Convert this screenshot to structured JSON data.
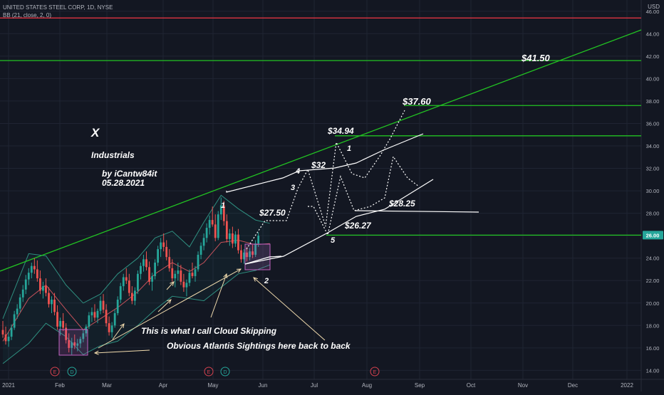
{
  "header": {
    "symbol_line": "UNITED STATES STEEL CORP, 1D, NYSE",
    "indicator_line": "BB (21, close, 2, 0)",
    "currency": "USD"
  },
  "colors": {
    "background": "#131722",
    "grid": "#1f2433",
    "text": "#b2b5be",
    "up": "#26a69a",
    "down": "#ef5350",
    "bb_band": "#2f8f80",
    "bb_basis": "#c4515a",
    "bb_fill": "rgba(38,166,154,0.06)",
    "resistance_red": "#f23645",
    "support_green": "#22c322",
    "annotation": "#ffffff",
    "arrow": "#f2dcae",
    "box": "#c060c0",
    "last_price_bg": "#26a69a"
  },
  "chart_data": {
    "type": "candlestick",
    "symbol": "UNITED STATES STEEL CORP",
    "interval": "1D",
    "exchange": "NYSE",
    "indicator": "BB (21, close, 2, 0)",
    "ylim": [
      13.2,
      47.0
    ],
    "y_ticks": [
      "46.00",
      "44.00",
      "42.00",
      "40.00",
      "38.00",
      "36.00",
      "34.00",
      "32.00",
      "30.00",
      "28.00",
      "24.00",
      "22.00",
      "20.00",
      "18.00",
      "16.00",
      "14.00"
    ],
    "x_ticks": [
      "2021",
      "Feb",
      "Mar",
      "Apr",
      "May",
      "Jun",
      "Jul",
      "Aug",
      "Sep",
      "Oct",
      "Nov",
      "Dec",
      "2022"
    ],
    "last_price": "26.00",
    "candles": [
      {
        "o": 17.6,
        "h": 18.4,
        "l": 16.9,
        "c": 17.2
      },
      {
        "o": 17.2,
        "h": 17.9,
        "l": 16.3,
        "c": 16.6
      },
      {
        "o": 16.6,
        "h": 17.4,
        "l": 16.1,
        "c": 17.0
      },
      {
        "o": 17.0,
        "h": 18.1,
        "l": 16.7,
        "c": 17.8
      },
      {
        "o": 17.8,
        "h": 19.3,
        "l": 17.6,
        "c": 19.0
      },
      {
        "o": 19.0,
        "h": 19.9,
        "l": 18.6,
        "c": 19.5
      },
      {
        "o": 19.5,
        "h": 20.8,
        "l": 19.2,
        "c": 20.5
      },
      {
        "o": 20.5,
        "h": 21.6,
        "l": 20.1,
        "c": 21.2
      },
      {
        "o": 21.2,
        "h": 22.5,
        "l": 20.8,
        "c": 22.1
      },
      {
        "o": 22.1,
        "h": 23.1,
        "l": 21.6,
        "c": 22.7
      },
      {
        "o": 22.7,
        "h": 23.6,
        "l": 22.2,
        "c": 23.3
      },
      {
        "o": 23.3,
        "h": 24.0,
        "l": 22.6,
        "c": 23.0
      },
      {
        "o": 23.0,
        "h": 23.8,
        "l": 21.9,
        "c": 22.2
      },
      {
        "o": 22.2,
        "h": 22.9,
        "l": 20.8,
        "c": 21.1
      },
      {
        "o": 21.1,
        "h": 21.9,
        "l": 20.4,
        "c": 21.5
      },
      {
        "o": 21.5,
        "h": 22.2,
        "l": 20.6,
        "c": 20.9
      },
      {
        "o": 20.9,
        "h": 21.4,
        "l": 19.6,
        "c": 19.9
      },
      {
        "o": 19.9,
        "h": 20.6,
        "l": 19.1,
        "c": 20.3
      },
      {
        "o": 20.3,
        "h": 20.9,
        "l": 18.9,
        "c": 19.2
      },
      {
        "o": 19.2,
        "h": 19.8,
        "l": 17.6,
        "c": 17.9
      },
      {
        "o": 17.9,
        "h": 18.7,
        "l": 17.1,
        "c": 18.4
      },
      {
        "o": 18.4,
        "h": 19.1,
        "l": 17.5,
        "c": 17.8
      },
      {
        "o": 17.8,
        "h": 18.2,
        "l": 16.4,
        "c": 16.7
      },
      {
        "o": 16.7,
        "h": 17.3,
        "l": 15.6,
        "c": 16.0
      },
      {
        "o": 16.0,
        "h": 16.9,
        "l": 15.4,
        "c": 16.5
      },
      {
        "o": 16.5,
        "h": 17.2,
        "l": 15.9,
        "c": 16.2
      },
      {
        "o": 16.2,
        "h": 16.8,
        "l": 15.7,
        "c": 16.4
      },
      {
        "o": 16.4,
        "h": 17.0,
        "l": 16.0,
        "c": 16.8
      },
      {
        "o": 16.8,
        "h": 17.6,
        "l": 16.5,
        "c": 17.3
      },
      {
        "o": 17.3,
        "h": 18.1,
        "l": 17.0,
        "c": 17.9
      },
      {
        "o": 17.9,
        "h": 19.2,
        "l": 17.7,
        "c": 18.9
      },
      {
        "o": 18.9,
        "h": 19.6,
        "l": 18.3,
        "c": 19.2
      },
      {
        "o": 19.2,
        "h": 19.9,
        "l": 18.4,
        "c": 18.7
      },
      {
        "o": 18.7,
        "h": 19.5,
        "l": 18.2,
        "c": 19.3
      },
      {
        "o": 19.3,
        "h": 20.6,
        "l": 19.0,
        "c": 20.2
      },
      {
        "o": 20.2,
        "h": 20.8,
        "l": 19.1,
        "c": 19.4
      },
      {
        "o": 19.4,
        "h": 19.9,
        "l": 17.9,
        "c": 18.2
      },
      {
        "o": 18.2,
        "h": 18.8,
        "l": 17.1,
        "c": 17.4
      },
      {
        "o": 17.4,
        "h": 18.3,
        "l": 16.9,
        "c": 18.0
      },
      {
        "o": 18.0,
        "h": 19.4,
        "l": 17.8,
        "c": 19.1
      },
      {
        "o": 19.1,
        "h": 20.6,
        "l": 18.9,
        "c": 20.3
      },
      {
        "o": 20.3,
        "h": 21.8,
        "l": 20.0,
        "c": 21.5
      },
      {
        "o": 21.5,
        "h": 22.6,
        "l": 21.1,
        "c": 22.3
      },
      {
        "o": 22.3,
        "h": 23.1,
        "l": 21.7,
        "c": 22.0
      },
      {
        "o": 22.0,
        "h": 22.6,
        "l": 20.6,
        "c": 20.9
      },
      {
        "o": 20.9,
        "h": 21.5,
        "l": 19.9,
        "c": 20.2
      },
      {
        "o": 20.2,
        "h": 21.4,
        "l": 19.8,
        "c": 21.1
      },
      {
        "o": 21.1,
        "h": 22.9,
        "l": 20.8,
        "c": 22.6
      },
      {
        "o": 22.6,
        "h": 23.6,
        "l": 22.1,
        "c": 23.3
      },
      {
        "o": 23.3,
        "h": 24.3,
        "l": 22.8,
        "c": 23.9
      },
      {
        "o": 23.9,
        "h": 24.6,
        "l": 22.9,
        "c": 23.2
      },
      {
        "o": 23.2,
        "h": 23.7,
        "l": 21.6,
        "c": 21.9
      },
      {
        "o": 21.9,
        "h": 22.7,
        "l": 21.1,
        "c": 22.4
      },
      {
        "o": 22.4,
        "h": 23.9,
        "l": 22.1,
        "c": 23.6
      },
      {
        "o": 23.6,
        "h": 25.1,
        "l": 23.3,
        "c": 24.8
      },
      {
        "o": 24.8,
        "h": 25.8,
        "l": 24.1,
        "c": 25.4
      },
      {
        "o": 25.4,
        "h": 26.2,
        "l": 24.6,
        "c": 25.0
      },
      {
        "o": 25.0,
        "h": 25.6,
        "l": 23.8,
        "c": 24.1
      },
      {
        "o": 24.1,
        "h": 24.8,
        "l": 22.8,
        "c": 23.1
      },
      {
        "o": 23.1,
        "h": 23.9,
        "l": 21.9,
        "c": 22.2
      },
      {
        "o": 22.2,
        "h": 22.9,
        "l": 21.4,
        "c": 22.6
      },
      {
        "o": 22.6,
        "h": 23.6,
        "l": 22.0,
        "c": 22.9
      },
      {
        "o": 22.9,
        "h": 23.4,
        "l": 21.6,
        "c": 21.9
      },
      {
        "o": 21.9,
        "h": 22.6,
        "l": 21.0,
        "c": 21.4
      },
      {
        "o": 21.4,
        "h": 22.1,
        "l": 20.6,
        "c": 21.8
      },
      {
        "o": 21.8,
        "h": 23.0,
        "l": 21.5,
        "c": 22.7
      },
      {
        "o": 22.7,
        "h": 23.6,
        "l": 22.2,
        "c": 22.4
      },
      {
        "o": 22.4,
        "h": 23.3,
        "l": 21.9,
        "c": 23.0
      },
      {
        "o": 23.0,
        "h": 24.6,
        "l": 22.8,
        "c": 24.3
      },
      {
        "o": 24.3,
        "h": 25.4,
        "l": 23.9,
        "c": 25.1
      },
      {
        "o": 25.1,
        "h": 26.2,
        "l": 24.7,
        "c": 25.8
      },
      {
        "o": 25.8,
        "h": 27.1,
        "l": 25.4,
        "c": 26.7
      },
      {
        "o": 26.7,
        "h": 27.8,
        "l": 26.1,
        "c": 27.4
      },
      {
        "o": 27.4,
        "h": 28.6,
        "l": 26.8,
        "c": 27.0
      },
      {
        "o": 27.0,
        "h": 27.9,
        "l": 25.5,
        "c": 25.8
      },
      {
        "o": 25.8,
        "h": 28.2,
        "l": 25.6,
        "c": 27.9
      },
      {
        "o": 27.9,
        "h": 29.4,
        "l": 27.4,
        "c": 28.7
      },
      {
        "o": 28.7,
        "h": 29.1,
        "l": 26.9,
        "c": 27.3
      },
      {
        "o": 27.3,
        "h": 27.9,
        "l": 25.4,
        "c": 25.7
      },
      {
        "o": 25.7,
        "h": 26.6,
        "l": 25.1,
        "c": 26.2
      },
      {
        "o": 26.2,
        "h": 26.8,
        "l": 24.9,
        "c": 25.3
      },
      {
        "o": 25.3,
        "h": 26.4,
        "l": 25.0,
        "c": 26.1
      },
      {
        "o": 26.1,
        "h": 26.6,
        "l": 24.4,
        "c": 24.7
      },
      {
        "o": 24.7,
        "h": 25.2,
        "l": 23.6,
        "c": 23.9
      },
      {
        "o": 23.9,
        "h": 24.8,
        "l": 23.5,
        "c": 24.5
      },
      {
        "o": 24.5,
        "h": 25.0,
        "l": 23.7,
        "c": 24.1
      },
      {
        "o": 24.1,
        "h": 24.9,
        "l": 23.8,
        "c": 24.6
      },
      {
        "o": 24.6,
        "h": 25.2,
        "l": 24.0,
        "c": 24.3
      },
      {
        "o": 24.3,
        "h": 25.6,
        "l": 24.1,
        "c": 25.3
      },
      {
        "o": 25.3,
        "h": 26.3,
        "l": 25.0,
        "c": 26.0
      }
    ],
    "bollinger": {
      "upper": [
        [
          0,
          18.6
        ],
        [
          9,
          24.4
        ],
        [
          15,
          24.2
        ],
        [
          22,
          21.6
        ],
        [
          28,
          20.0
        ],
        [
          34,
          20.8
        ],
        [
          40,
          22.6
        ],
        [
          47,
          24.0
        ],
        [
          53,
          25.8
        ],
        [
          59,
          26.4
        ],
        [
          65,
          25.0
        ],
        [
          70,
          27.2
        ],
        [
          76,
          29.6
        ],
        [
          82,
          28.4
        ],
        [
          88,
          27.4
        ],
        [
          93,
          27.1
        ]
      ],
      "basis": [
        [
          0,
          16.6
        ],
        [
          9,
          20.4
        ],
        [
          15,
          21.6
        ],
        [
          22,
          19.4
        ],
        [
          28,
          17.6
        ],
        [
          34,
          18.6
        ],
        [
          40,
          19.6
        ],
        [
          47,
          21.0
        ],
        [
          53,
          22.6
        ],
        [
          59,
          23.6
        ],
        [
          65,
          22.8
        ],
        [
          70,
          23.6
        ],
        [
          76,
          25.4
        ],
        [
          82,
          25.6
        ],
        [
          88,
          25.2
        ],
        [
          93,
          25.3
        ]
      ],
      "lower": [
        [
          0,
          14.6
        ],
        [
          9,
          16.4
        ],
        [
          15,
          18.2
        ],
        [
          22,
          17.0
        ],
        [
          28,
          15.4
        ],
        [
          34,
          16.2
        ],
        [
          40,
          16.6
        ],
        [
          47,
          18.0
        ],
        [
          53,
          19.4
        ],
        [
          59,
          20.6
        ],
        [
          65,
          20.4
        ],
        [
          70,
          20.2
        ],
        [
          76,
          21.4
        ],
        [
          82,
          22.6
        ],
        [
          88,
          22.9
        ],
        [
          93,
          23.4
        ]
      ]
    },
    "horizontal_levels": [
      {
        "price": 45.4,
        "color": "red",
        "extend": "full"
      },
      {
        "price": 41.6,
        "color": "green",
        "extend": "full"
      },
      {
        "price": 37.6,
        "color": "green",
        "extend": "right",
        "from_x": 567
      },
      {
        "price": 34.9,
        "color": "green",
        "extend": "right",
        "from_x": 470
      },
      {
        "price": 26.05,
        "color": "green",
        "extend": "right",
        "from_x": 458
      }
    ],
    "annotations": {
      "price_labels": [
        "$41.50",
        "$37.60",
        "$34.94",
        "$32",
        "$27.50",
        "$28.25",
        "$26.27"
      ],
      "wave_labels": [
        "1",
        "1",
        "2",
        "3",
        "4",
        "5"
      ],
      "text": {
        "symbol_mark": "X",
        "sector": "Industrials",
        "author": "by iCantw84it",
        "date": "05.28.2021",
        "note_cloud": "This is what I call Cloud Skipping",
        "note_atlantis": "Obvious Atlantis Sightings here back to back"
      }
    },
    "event_markers": [
      "E",
      "D",
      "E",
      "D",
      "E"
    ]
  }
}
